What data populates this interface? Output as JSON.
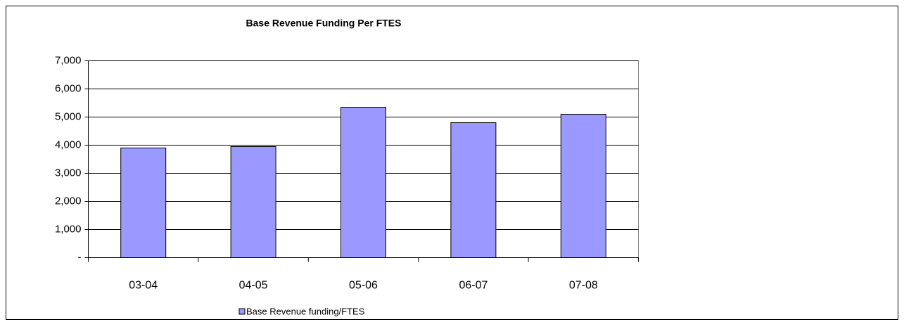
{
  "chart_data": {
    "type": "bar",
    "title": "Base Revenue Funding Per FTES",
    "categories": [
      "03-04",
      "04-05",
      "05-06",
      "06-07",
      "07-08"
    ],
    "series": [
      {
        "name": "Base Revenue funding/FTES",
        "color": "#9999ff",
        "values": [
          3900,
          3950,
          5350,
          4800,
          5100
        ]
      }
    ],
    "ylim": [
      0,
      7000
    ],
    "yticks": [
      {
        "value": 0,
        "label": "-"
      },
      {
        "value": 1000,
        "label": "1,000"
      },
      {
        "value": 2000,
        "label": "2,000"
      },
      {
        "value": 3000,
        "label": "3,000"
      },
      {
        "value": 4000,
        "label": "4,000"
      },
      {
        "value": 5000,
        "label": "5,000"
      },
      {
        "value": 6000,
        "label": "6,000"
      },
      {
        "value": 7000,
        "label": "7,000"
      }
    ],
    "grid": true,
    "legend": "bottom"
  }
}
